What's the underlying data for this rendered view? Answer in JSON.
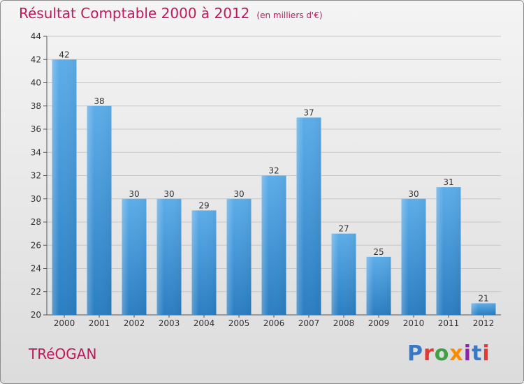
{
  "header": {
    "title": "Résultat Comptable 2000 à 2012",
    "subtitle": "(en milliers d'€)"
  },
  "footer": {
    "commune": "TRéOGAN",
    "logo_text": "Proxiti",
    "logo_letters": [
      {
        "ch": "P",
        "color": "#3a78c4"
      },
      {
        "ch": "r",
        "color": "#e53935"
      },
      {
        "ch": "o",
        "color": "#43a047"
      },
      {
        "ch": "x",
        "color": "#fb8c00"
      },
      {
        "ch": "i",
        "color": "#8e24aa"
      },
      {
        "ch": "t",
        "color": "#3a78c4"
      },
      {
        "ch": "i",
        "color": "#e53935"
      }
    ]
  },
  "colors": {
    "bar_light": "#5dade9",
    "bar_dark": "#2a7ec2",
    "title": "#c2185b",
    "grid": "#c8c8c8"
  },
  "chart_data": {
    "type": "bar",
    "title": "Résultat Comptable 2000 à 2012",
    "subtitle": "(en milliers d'€)",
    "categories": [
      "2000",
      "2001",
      "2002",
      "2003",
      "2004",
      "2005",
      "2006",
      "2007",
      "2008",
      "2009",
      "2010",
      "2011",
      "2012"
    ],
    "values": [
      42,
      38,
      30,
      30,
      29,
      30,
      32,
      37,
      27,
      25,
      30,
      31,
      21
    ],
    "ylim": [
      20,
      44
    ],
    "yticks": [
      20,
      22,
      24,
      26,
      28,
      30,
      32,
      34,
      36,
      38,
      40,
      42,
      44
    ],
    "grid": true,
    "xlabel": "",
    "ylabel": ""
  }
}
